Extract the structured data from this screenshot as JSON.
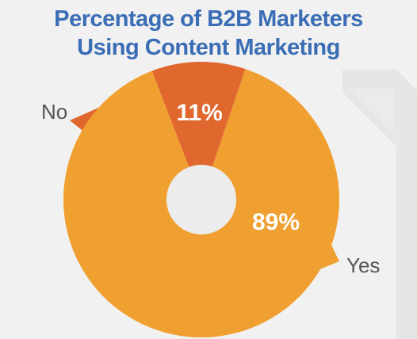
{
  "title_lines": [
    "Percentage of B2B Marketers",
    "Using Content Marketing"
  ],
  "chart_data": {
    "type": "pie",
    "title": "Percentage of B2B Marketers Using Content Marketing",
    "categories": [
      "No",
      "Yes"
    ],
    "values": [
      11,
      89
    ],
    "data_labels": [
      "11%",
      "89%"
    ],
    "donut": true,
    "legend": "none"
  },
  "colors": {
    "background": "#f1f1f1",
    "title": "#3a6db5",
    "no_slice": "#e0682e",
    "yes_slice": "#f0a030",
    "hole": "#ececec",
    "callout_text": "#555555",
    "data_label": "#ffffff"
  }
}
